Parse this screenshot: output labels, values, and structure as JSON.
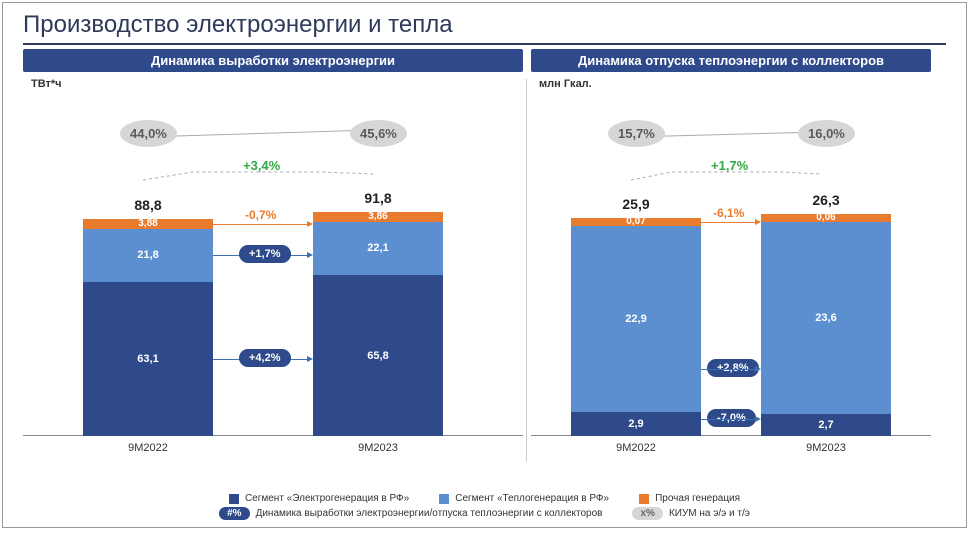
{
  "title": "Производство электроэнергии и тепла",
  "colors": {
    "dark": "#2e4a8a",
    "light": "#5b8fcf",
    "orange": "#e97b2e",
    "grey": "#d6d6d6",
    "green": "#2fa846"
  },
  "left": {
    "header": "Динамика выработки электроэнергии",
    "unit": "ТВт*ч",
    "ylim_max": 100,
    "bars": [
      {
        "label": "9M2022",
        "total": "88,8",
        "segments": {
          "dark": {
            "v": 63.1,
            "t": "63,1"
          },
          "light": {
            "v": 21.8,
            "t": "21,8"
          },
          "orange": {
            "v": 3.88,
            "t": "3,88"
          }
        },
        "kium": "44,0%"
      },
      {
        "label": "9M2023",
        "total": "91,8",
        "segments": {
          "dark": {
            "v": 65.8,
            "t": "65,8"
          },
          "light": {
            "v": 22.1,
            "t": "22,1"
          },
          "orange": {
            "v": 3.86,
            "t": "3,86"
          }
        },
        "kium": "45,6%"
      }
    ],
    "top_change": "+3,4%",
    "seg_changes": {
      "orange": "-0,7%",
      "light": "+1,7%",
      "dark": "+4,2%"
    }
  },
  "right": {
    "header": "Динамика отпуска теплоэнергии с коллекторов",
    "unit": "млн Гкал.",
    "ylim_max": 30,
    "bars": [
      {
        "label": "9M2022",
        "total": "25,9",
        "segments": {
          "dark": {
            "v": 2.9,
            "t": "2,9"
          },
          "light": {
            "v": 22.9,
            "t": "22,9"
          },
          "orange": {
            "v": 0.07,
            "t": "0,07"
          }
        },
        "kium": "15,7%"
      },
      {
        "label": "9M2023",
        "total": "26,3",
        "segments": {
          "dark": {
            "v": 2.7,
            "t": "2,7"
          },
          "light": {
            "v": 23.6,
            "t": "23,6"
          },
          "orange": {
            "v": 0.06,
            "t": "0,06"
          }
        },
        "kium": "16,0%"
      }
    ],
    "top_change": "+1,7%",
    "seg_changes": {
      "orange": "-6,1%",
      "light": "+2,8%",
      "dark": "-7,0%"
    }
  },
  "legend": {
    "items": [
      {
        "swatch": "dark",
        "text": "Сегмент «Электрогенерация в РФ»"
      },
      {
        "swatch": "light",
        "text": "Сегмент «Теплогенерация в РФ»"
      },
      {
        "swatch": "orange",
        "text": "Прочая генерация"
      }
    ],
    "badge_icon": "#%",
    "badge_text": "Динамика выработки электроэнергии/отпуска теплоэнергии с коллекторов",
    "kium_icon": "x%",
    "kium_text": "КИУМ на э/э и т/э"
  }
}
